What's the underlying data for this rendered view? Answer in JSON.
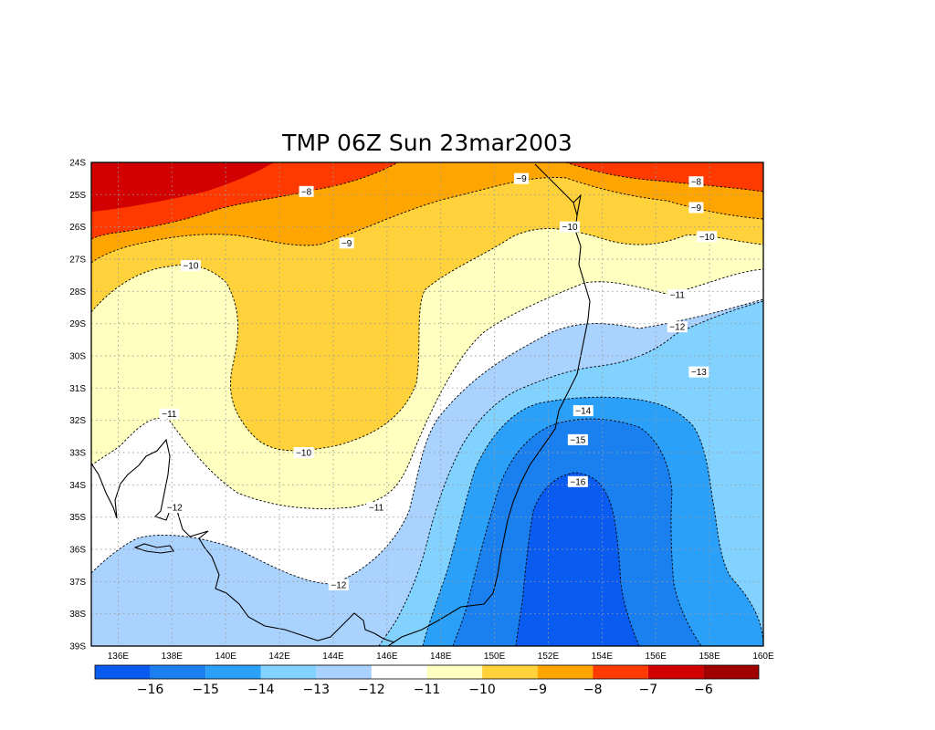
{
  "title": "TMP 06Z Sun 23mar2003",
  "axes": {
    "lat_labels": [
      "24S",
      "25S",
      "26S",
      "27S",
      "28S",
      "29S",
      "30S",
      "31S",
      "32S",
      "33S",
      "34S",
      "35S",
      "36S",
      "37S",
      "38S",
      "39S"
    ],
    "lon_labels": [
      "136E",
      "138E",
      "140E",
      "142E",
      "144E",
      "146E",
      "148E",
      "150E",
      "152E",
      "154E",
      "156E",
      "158E",
      "160E"
    ]
  },
  "contour_labels": [
    {
      "text": "−8",
      "lon": 143.0,
      "lat": -24.9
    },
    {
      "text": "−8",
      "lon": 157.5,
      "lat": -24.6
    },
    {
      "text": "−9",
      "lon": 151.0,
      "lat": -24.5
    },
    {
      "text": "−9",
      "lon": 144.5,
      "lat": -26.5
    },
    {
      "text": "−9",
      "lon": 157.5,
      "lat": -25.4
    },
    {
      "text": "−10",
      "lon": 152.8,
      "lat": -26.0
    },
    {
      "text": "−10",
      "lon": 157.9,
      "lat": -26.3
    },
    {
      "text": "−10",
      "lon": 138.7,
      "lat": -27.2
    },
    {
      "text": "−10",
      "lon": 142.9,
      "lat": -33.0
    },
    {
      "text": "−11",
      "lon": 156.8,
      "lat": -28.1
    },
    {
      "text": "−11",
      "lon": 137.9,
      "lat": -31.8
    },
    {
      "text": "−11",
      "lon": 145.6,
      "lat": -34.7
    },
    {
      "text": "−12",
      "lon": 156.8,
      "lat": -29.1
    },
    {
      "text": "−12",
      "lon": 138.1,
      "lat": -34.7
    },
    {
      "text": "−12",
      "lon": 144.2,
      "lat": -37.1
    },
    {
      "text": "−13",
      "lon": 157.6,
      "lat": -30.5
    },
    {
      "text": "−14",
      "lon": 153.3,
      "lat": -31.7
    },
    {
      "text": "−15",
      "lon": 153.1,
      "lat": -32.6
    },
    {
      "text": "−16",
      "lon": 153.1,
      "lat": -33.9
    }
  ],
  "colorbar": {
    "labels": [
      "−16",
      "−15",
      "−14",
      "−13",
      "−12",
      "−11",
      "−10",
      "−9",
      "−8",
      "−7",
      "−6"
    ],
    "colors": [
      "#0a5cf0",
      "#1a80f0",
      "#2aa0f8",
      "#82d2ff",
      "#aad2ff",
      "#ffffff",
      "#ffffc0",
      "#ffd23c",
      "#ffa500",
      "#ff3a00",
      "#d20000",
      "#a00000"
    ]
  }
}
